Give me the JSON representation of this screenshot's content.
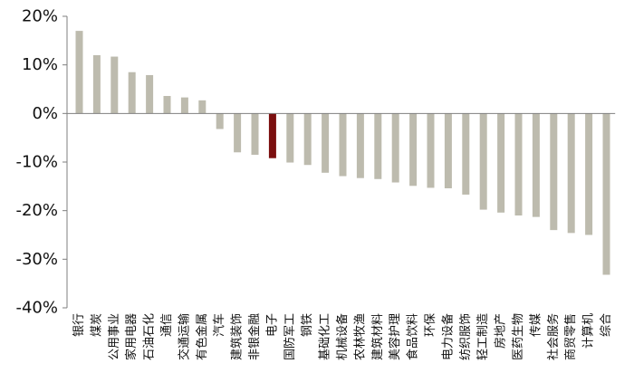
{
  "chart_data": {
    "type": "bar",
    "title": "",
    "xlabel": "",
    "ylabel": "",
    "ylim": [
      -40,
      20
    ],
    "yticks": [
      20,
      10,
      0,
      -10,
      -20,
      -30,
      -40
    ],
    "ytick_labels": [
      "20%",
      "10%",
      "0%",
      "-10%",
      "-20%",
      "-30%",
      "-40%"
    ],
    "grid": false,
    "legend": "none",
    "bar_color": "#BDBBAE",
    "highlight_color": "#7B0F0F",
    "highlight_category": "电子",
    "categories": [
      "银行",
      "煤炭",
      "公用事业",
      "家用电器",
      "石油石化",
      "通信",
      "交通运输",
      "有色金属",
      "汽车",
      "建筑装饰",
      "非银金融",
      "电子",
      "国防军工",
      "钢铁",
      "基础化工",
      "机械设备",
      "农林牧渔",
      "建筑材料",
      "美容护理",
      "食品饮料",
      "环保",
      "电力设备",
      "纺织服饰",
      "轻工制造",
      "房地产",
      "医药生物",
      "传媒",
      "社会服务",
      "商贸零售",
      "计算机",
      "综合"
    ],
    "values": [
      17.0,
      12.0,
      11.7,
      8.5,
      7.9,
      3.6,
      3.3,
      2.7,
      -3.2,
      -8.0,
      -8.5,
      -9.2,
      -10.1,
      -10.6,
      -12.2,
      -12.9,
      -13.3,
      -13.5,
      -14.2,
      -14.9,
      -15.3,
      -15.4,
      -16.7,
      -19.8,
      -20.4,
      -21.0,
      -21.3,
      -24.0,
      -24.6,
      -25.0,
      -33.2
    ]
  }
}
